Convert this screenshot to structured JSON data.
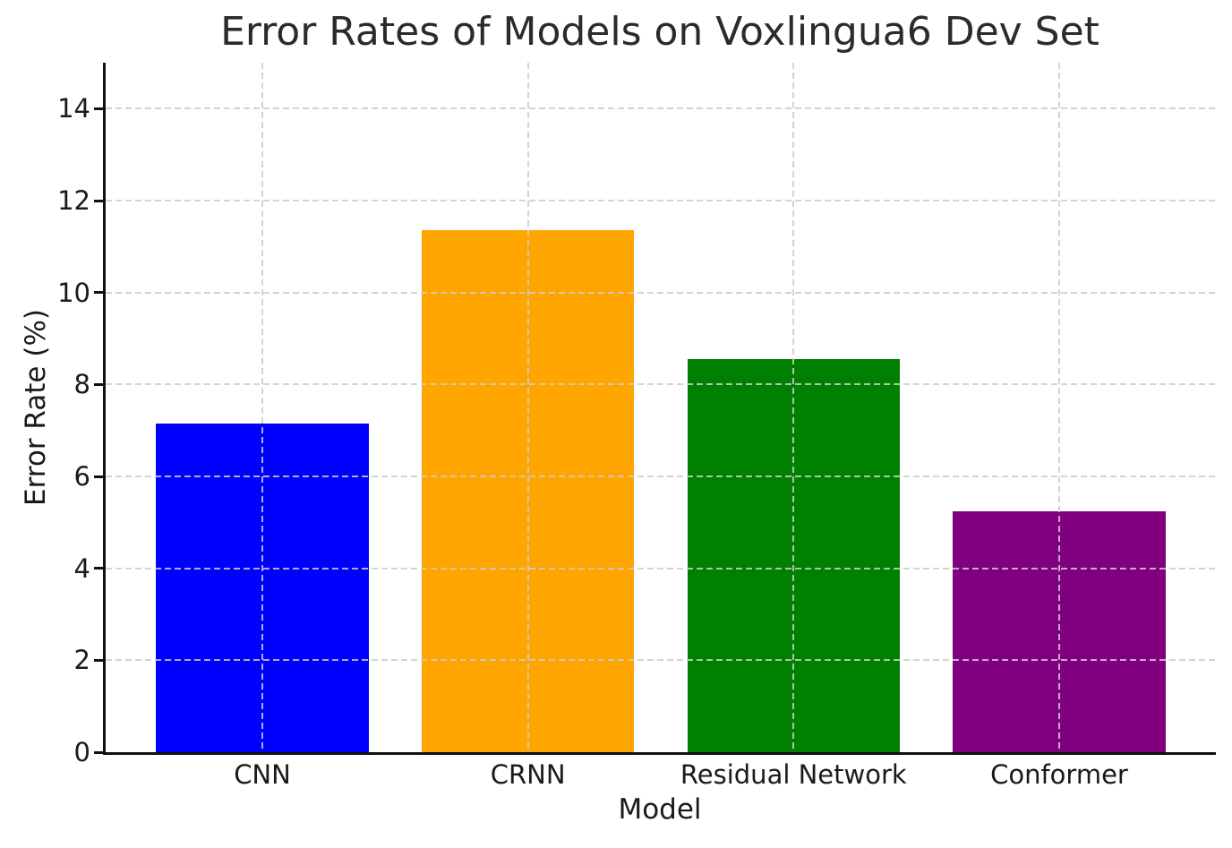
{
  "chart_data": {
    "type": "bar",
    "title": "Error Rates of Models on Voxlingua6 Dev Set",
    "xlabel": "Model",
    "ylabel": "Error Rate (%)",
    "categories": [
      "CNN",
      "CRNN",
      "Residual Network",
      "Conformer"
    ],
    "values": [
      7.15,
      11.35,
      8.55,
      5.25
    ],
    "bar_colors": [
      "#0000ff",
      "#ffa500",
      "#008000",
      "#800080"
    ],
    "yticks": [
      0,
      2,
      4,
      6,
      8,
      10,
      12,
      14
    ],
    "ylim": [
      0,
      15
    ],
    "xlim": [
      -0.59,
      3.59
    ],
    "bar_width": 0.8,
    "grid": "dashed, light gray, both directions, drawn above bars",
    "legend": "none",
    "background_color": "#ffffff",
    "spine_color": "#111111",
    "grid_color": "#cdcdcd",
    "text_color": "#1a1a1a"
  }
}
